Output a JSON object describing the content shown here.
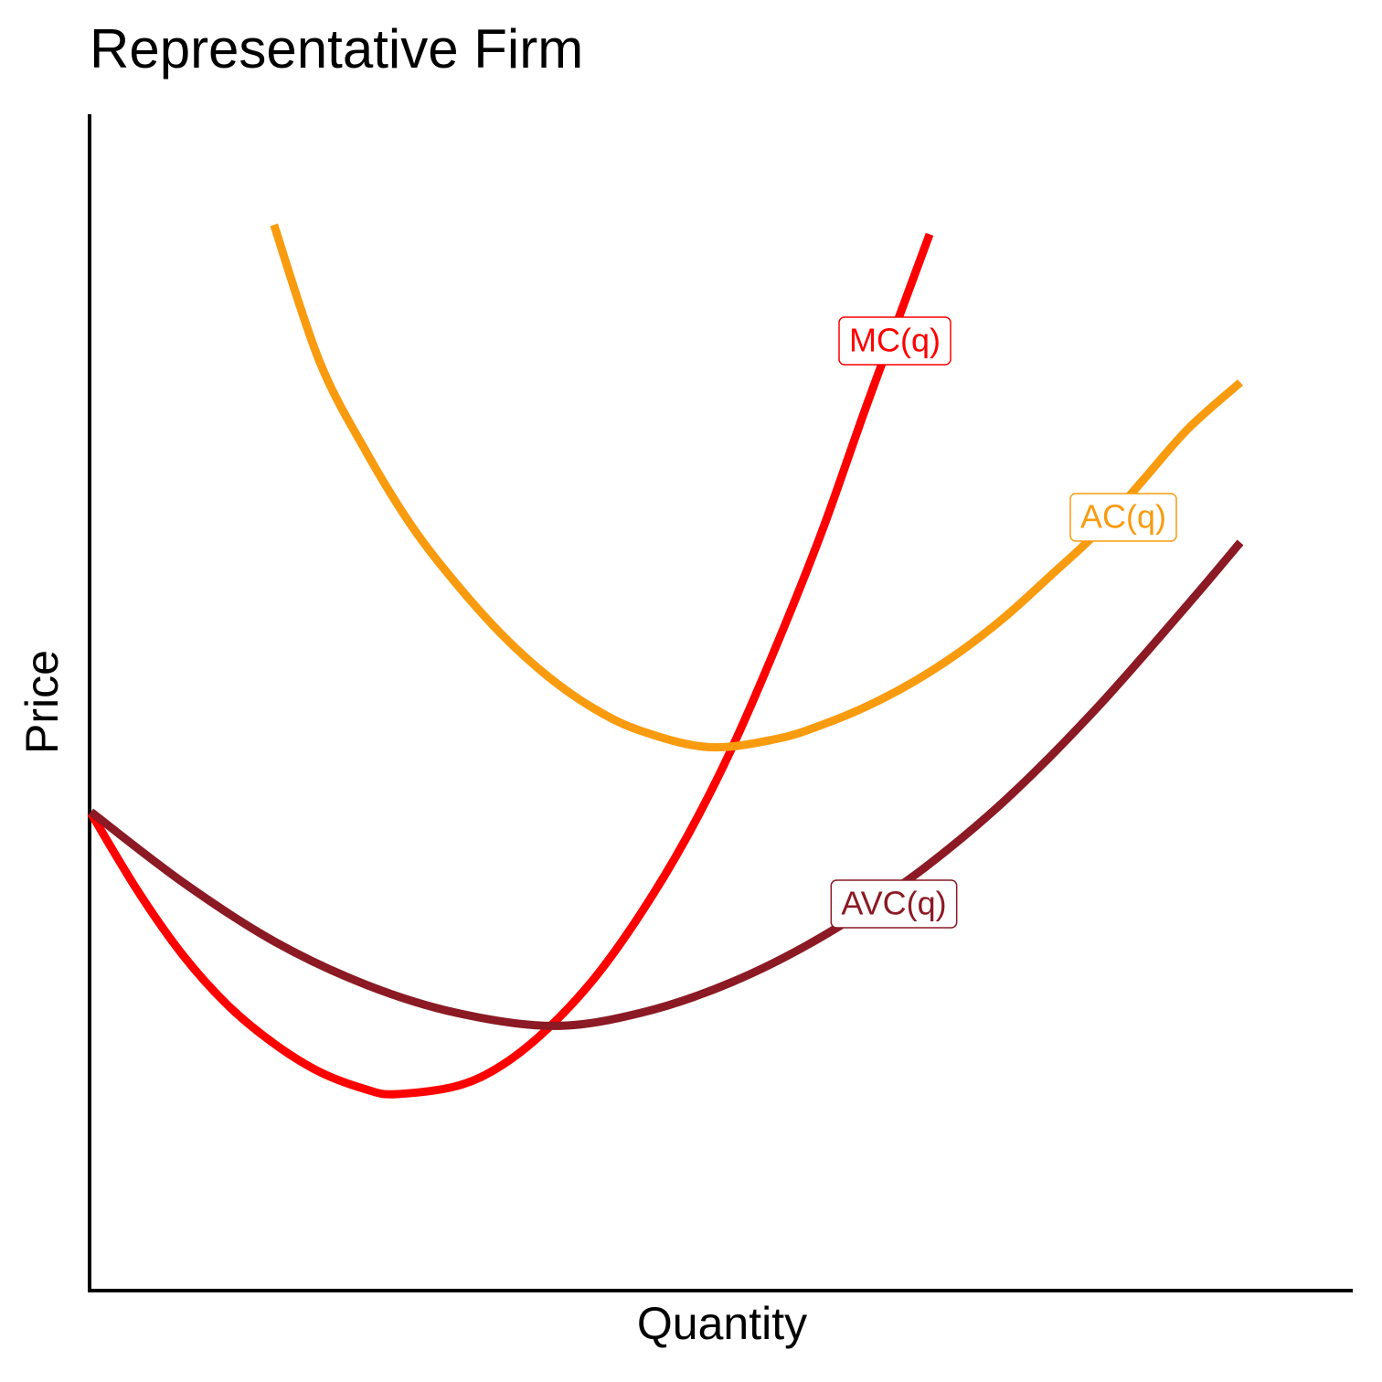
{
  "chart_data": {
    "type": "line",
    "title": "Representative Firm",
    "x_label": "Quantity",
    "y_label": "Price",
    "xlim": [
      0,
      10
    ],
    "ylim": [
      0,
      10
    ],
    "series": [
      {
        "name": "MC(q)",
        "color": "#ff0000",
        "x": [
          0.01,
          0.38,
          0.74,
          1.1,
          1.46,
          1.82,
          2.19,
          2.42,
          2.91,
          3.27,
          3.63,
          4.0,
          4.36,
          4.72,
          5.08,
          5.44,
          5.8,
          6.16,
          6.65
        ],
        "values": [
          4.06,
          3.4,
          2.85,
          2.42,
          2.1,
          1.86,
          1.71,
          1.67,
          1.74,
          1.92,
          2.23,
          2.66,
          3.2,
          3.84,
          4.6,
          5.49,
          6.46,
          7.55,
          8.98
        ]
      },
      {
        "name": "AC(q)",
        "color": "#f99b0f",
        "x": [
          1.46,
          1.82,
          2.19,
          2.55,
          2.91,
          3.27,
          3.63,
          3.99,
          4.36,
          4.9,
          5.44,
          5.8,
          6.16,
          6.53,
          6.89,
          7.25,
          7.61,
          7.98,
          8.34,
          8.7,
          9.11
        ],
        "values": [
          9.06,
          7.9,
          7.13,
          6.5,
          6.0,
          5.57,
          5.22,
          4.95,
          4.76,
          4.62,
          4.69,
          4.81,
          4.97,
          5.18,
          5.43,
          5.73,
          6.08,
          6.45,
          6.89,
          7.33,
          7.72
        ]
      },
      {
        "name": "AVC(q)",
        "color": "#8b1a24",
        "x": [
          0.01,
          0.74,
          1.46,
          2.19,
          2.91,
          3.67,
          4.36,
          5.08,
          5.8,
          6.53,
          7.25,
          7.98,
          8.7,
          9.11
        ],
        "values": [
          4.07,
          3.47,
          2.97,
          2.6,
          2.36,
          2.25,
          2.36,
          2.62,
          3.01,
          3.53,
          4.17,
          4.96,
          5.84,
          6.36
        ]
      }
    ]
  }
}
